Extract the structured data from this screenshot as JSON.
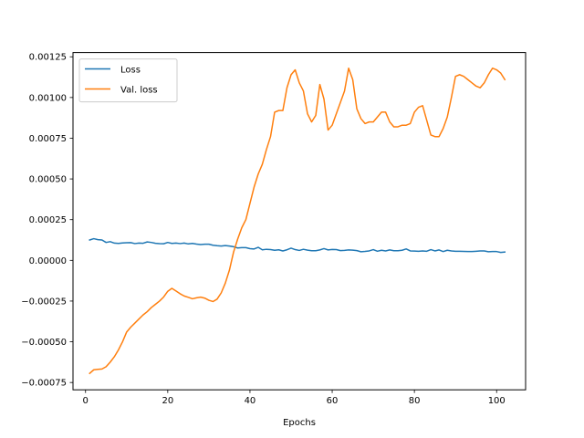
{
  "chart_data": {
    "type": "line",
    "title": "",
    "xlabel": "Epochs",
    "ylabel": "",
    "xlim": [
      -3.05,
      107.05
    ],
    "ylim": [
      -0.000795,
      0.001276
    ],
    "xticks": [
      0,
      20,
      40,
      60,
      80,
      100
    ],
    "xtick_labels": [
      "0",
      "20",
      "40",
      "60",
      "80",
      "100"
    ],
    "yticks": [
      -0.00075,
      -0.0005,
      -0.00025,
      0.0,
      0.00025,
      0.0005,
      0.00075,
      0.001,
      0.00125
    ],
    "ytick_labels": [
      "−0.00075",
      "−0.00050",
      "−0.00025",
      "0.00000",
      "0.00025",
      "0.00050",
      "0.00075",
      "0.00100",
      "0.00125"
    ],
    "grid": false,
    "legend_position": "top-left",
    "x": [
      1,
      2,
      3,
      4,
      5,
      6,
      7,
      8,
      9,
      10,
      11,
      12,
      13,
      14,
      15,
      16,
      17,
      18,
      19,
      20,
      21,
      22,
      23,
      24,
      25,
      26,
      27,
      28,
      29,
      30,
      31,
      32,
      33,
      34,
      35,
      36,
      37,
      38,
      39,
      40,
      41,
      42,
      43,
      44,
      45,
      46,
      47,
      48,
      49,
      50,
      51,
      52,
      53,
      54,
      55,
      56,
      57,
      58,
      59,
      60,
      61,
      62,
      63,
      64,
      65,
      66,
      67,
      68,
      69,
      70,
      71,
      72,
      73,
      74,
      75,
      76,
      77,
      78,
      79,
      80,
      81,
      82,
      83,
      84,
      85,
      86,
      87,
      88,
      89,
      90,
      91,
      92,
      93,
      94,
      95,
      96,
      97,
      98,
      99,
      100,
      101,
      102
    ],
    "series": [
      {
        "name": "Loss",
        "color": "#1f77b4",
        "values": [
          0.000125,
          0.000133,
          0.000127,
          0.000125,
          0.00011,
          0.000115,
          0.000106,
          0.000104,
          0.000107,
          0.000108,
          0.000109,
          0.000103,
          0.000106,
          0.000105,
          0.000113,
          0.00011,
          0.000105,
          0.000103,
          0.000102,
          0.00011,
          0.000104,
          0.000106,
          0.000103,
          0.000106,
          0.000101,
          0.000104,
          0.0001,
          9.7e-05,
          9.9e-05,
          9.9e-05,
          9.3e-05,
          9e-05,
          8.8e-05,
          9.1e-05,
          8.8e-05,
          8.4e-05,
          7.6e-05,
          7.8e-05,
          7.8e-05,
          7.2e-05,
          7e-05,
          8e-05,
          6.5e-05,
          6.8e-05,
          6.6e-05,
          6.2e-05,
          6.5e-05,
          5.8e-05,
          6.5e-05,
          7.5e-05,
          6.6e-05,
          6.1e-05,
          6.8e-05,
          6.3e-05,
          5.9e-05,
          5.9e-05,
          6.4e-05,
          7.2e-05,
          6.4e-05,
          6.7e-05,
          6.6e-05,
          6e-05,
          6.1e-05,
          6.4e-05,
          6.3e-05,
          6e-05,
          5.3e-05,
          5.5e-05,
          5.8e-05,
          6.6e-05,
          5.6e-05,
          6.2e-05,
          5.8e-05,
          6.4e-05,
          5.9e-05,
          5.9e-05,
          6.2e-05,
          7e-05,
          5.8e-05,
          5.7e-05,
          5.6e-05,
          5.8e-05,
          5.6e-05,
          6.6e-05,
          5.8e-05,
          6.4e-05,
          5.4e-05,
          6.2e-05,
          5.8e-05,
          5.6e-05,
          5.6e-05,
          5.5e-05,
          5.4e-05,
          5.4e-05,
          5.6e-05,
          5.8e-05,
          5.8e-05,
          5.3e-05,
          5.4e-05,
          5.4e-05,
          4.9e-05,
          5.1e-05
        ]
      },
      {
        "name": "Val. loss",
        "color": "#ff7f0e",
        "values": [
          -0.000694,
          -0.000672,
          -0.000669,
          -0.000667,
          -0.000653,
          -0.000625,
          -0.000592,
          -0.00055,
          -0.0005,
          -0.00044,
          -0.00041,
          -0.000385,
          -0.00036,
          -0.000335,
          -0.000315,
          -0.00029,
          -0.00027,
          -0.00025,
          -0.000225,
          -0.00019,
          -0.000172,
          -0.000188,
          -0.000205,
          -0.000219,
          -0.000227,
          -0.000236,
          -0.00023,
          -0.000226,
          -0.000232,
          -0.000245,
          -0.000253,
          -0.000238,
          -0.0002,
          -0.00014,
          -6e-05,
          5e-05,
          0.00013,
          0.0002,
          0.00025,
          0.00035,
          0.00045,
          0.00053,
          0.00059,
          0.00068,
          0.00076,
          0.00091,
          0.00092,
          0.00092,
          0.00106,
          0.00114,
          0.00117,
          0.00109,
          0.00104,
          0.0009,
          0.00085,
          0.00089,
          0.00108,
          0.00099,
          0.0008,
          0.00083,
          0.0009,
          0.00097,
          0.00104,
          0.00118,
          0.00111,
          0.00093,
          0.00087,
          0.00084,
          0.00085,
          0.00085,
          0.00088,
          0.00091,
          0.00091,
          0.00085,
          0.00082,
          0.00082,
          0.00083,
          0.00083,
          0.00084,
          0.00091,
          0.00094,
          0.00095,
          0.00086,
          0.00077,
          0.00076,
          0.00076,
          0.00081,
          0.00088,
          0.001,
          0.00113,
          0.00114,
          0.00113,
          0.00111,
          0.00109,
          0.00107,
          0.00106,
          0.00109,
          0.00114,
          0.00118,
          0.00117,
          0.00115,
          0.00111
        ]
      }
    ]
  }
}
